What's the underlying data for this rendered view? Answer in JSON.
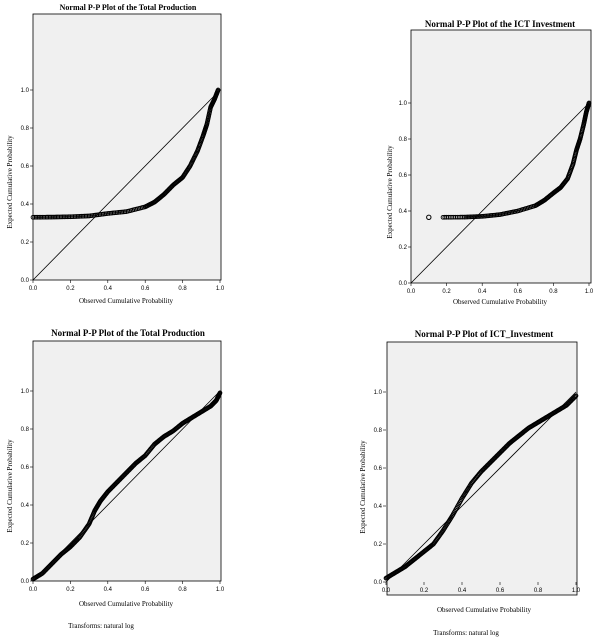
{
  "chart_data": [
    {
      "type": "scatter",
      "title": "Normal P-P Plot of the Total Production",
      "xlabel": "Observed Cumulative Probability",
      "ylabel": "Expected Cumulative Probability",
      "footnote": "",
      "xlim": [
        0,
        1
      ],
      "ylim": [
        0,
        1
      ],
      "xticks": [
        "0.0",
        "0.2",
        "0.4",
        "0.6",
        "0.8",
        "1.0"
      ],
      "yticks": [
        "0.0",
        "0.2",
        "0.4",
        "0.6",
        "0.8",
        "1.0"
      ],
      "reference_line": [
        [
          0,
          0
        ],
        [
          1,
          1
        ]
      ],
      "curve": [
        [
          0.0,
          0.33
        ],
        [
          0.1,
          0.331
        ],
        [
          0.2,
          0.333
        ],
        [
          0.3,
          0.337
        ],
        [
          0.4,
          0.35
        ],
        [
          0.5,
          0.36
        ],
        [
          0.6,
          0.385
        ],
        [
          0.65,
          0.41
        ],
        [
          0.7,
          0.45
        ],
        [
          0.75,
          0.5
        ],
        [
          0.8,
          0.54
        ],
        [
          0.84,
          0.6
        ],
        [
          0.88,
          0.68
        ],
        [
          0.91,
          0.76
        ],
        [
          0.93,
          0.82
        ],
        [
          0.95,
          0.91
        ],
        [
          0.97,
          0.95
        ],
        [
          0.99,
          1.0
        ]
      ]
    },
    {
      "type": "scatter",
      "title": "Normal P-P Plot of the ICT Investment",
      "xlabel": "Observed Cumulative Probability",
      "ylabel": "Expected Cumulative Probability",
      "footnote": "",
      "xlim": [
        0,
        1
      ],
      "ylim": [
        0,
        1
      ],
      "xticks": [
        "0.0",
        "0.2",
        "0.4",
        "0.6",
        "0.8",
        "1.0"
      ],
      "yticks": [
        "0.0",
        "0.2",
        "0.4",
        "0.6",
        "0.8",
        "1.0"
      ],
      "reference_line": [
        [
          0,
          0
        ],
        [
          1,
          1
        ]
      ],
      "outlier": [
        0.1,
        0.365
      ],
      "curve": [
        [
          0.18,
          0.365
        ],
        [
          0.3,
          0.366
        ],
        [
          0.4,
          0.37
        ],
        [
          0.5,
          0.38
        ],
        [
          0.6,
          0.4
        ],
        [
          0.7,
          0.43
        ],
        [
          0.75,
          0.46
        ],
        [
          0.8,
          0.5
        ],
        [
          0.84,
          0.53
        ],
        [
          0.88,
          0.58
        ],
        [
          0.91,
          0.66
        ],
        [
          0.93,
          0.74
        ],
        [
          0.95,
          0.8
        ],
        [
          0.97,
          0.88
        ],
        [
          0.985,
          0.95
        ],
        [
          1.0,
          1.0
        ]
      ]
    },
    {
      "type": "scatter",
      "title": "Normal P-P Plot of the Total Production",
      "xlabel": "Observed Cumulative Probability",
      "ylabel": "Expected Cumulative Probability",
      "footnote": "Transforms: natural log",
      "xlim": [
        0,
        1
      ],
      "ylim": [
        0,
        1
      ],
      "xticks": [
        "0.0",
        "0.2",
        "0.4",
        "0.6",
        "0.8",
        "1.0"
      ],
      "yticks": [
        "0.0",
        "0.2",
        "0.4",
        "0.6",
        "0.8",
        "1.0"
      ],
      "reference_line": [
        [
          0,
          0
        ],
        [
          1,
          1
        ]
      ],
      "curve": [
        [
          0.0,
          0.01
        ],
        [
          0.05,
          0.04
        ],
        [
          0.1,
          0.09
        ],
        [
          0.15,
          0.14
        ],
        [
          0.2,
          0.18
        ],
        [
          0.25,
          0.23
        ],
        [
          0.3,
          0.3
        ],
        [
          0.33,
          0.37
        ],
        [
          0.36,
          0.42
        ],
        [
          0.4,
          0.47
        ],
        [
          0.45,
          0.52
        ],
        [
          0.5,
          0.57
        ],
        [
          0.55,
          0.62
        ],
        [
          0.6,
          0.66
        ],
        [
          0.65,
          0.72
        ],
        [
          0.7,
          0.76
        ],
        [
          0.75,
          0.79
        ],
        [
          0.8,
          0.83
        ],
        [
          0.85,
          0.86
        ],
        [
          0.9,
          0.89
        ],
        [
          0.95,
          0.92
        ],
        [
          0.98,
          0.95
        ],
        [
          1.0,
          0.99
        ]
      ]
    },
    {
      "type": "scatter",
      "title": "Normal P-P Plot of ICT_Investment",
      "xlabel": "Observed Cumulative Probability",
      "ylabel": "Expected Cumulative Probability",
      "footnote": "Transforms: natural log",
      "xlim": [
        0,
        1
      ],
      "ylim": [
        0,
        1
      ],
      "xticks": [
        "0.0",
        "0.2",
        "0.4",
        "0.6",
        "0.8",
        "1.0"
      ],
      "yticks": [
        "0.0",
        "0.2",
        "0.4",
        "0.6",
        "0.8",
        "1.0"
      ],
      "reference_line": [
        [
          0,
          0
        ],
        [
          1,
          1
        ]
      ],
      "curve": [
        [
          0.0,
          0.02
        ],
        [
          0.05,
          0.05
        ],
        [
          0.1,
          0.08
        ],
        [
          0.15,
          0.12
        ],
        [
          0.2,
          0.16
        ],
        [
          0.25,
          0.2
        ],
        [
          0.3,
          0.27
        ],
        [
          0.35,
          0.35
        ],
        [
          0.4,
          0.44
        ],
        [
          0.45,
          0.52
        ],
        [
          0.5,
          0.58
        ],
        [
          0.55,
          0.63
        ],
        [
          0.6,
          0.68
        ],
        [
          0.65,
          0.73
        ],
        [
          0.7,
          0.77
        ],
        [
          0.75,
          0.81
        ],
        [
          0.8,
          0.84
        ],
        [
          0.85,
          0.87
        ],
        [
          0.9,
          0.9
        ],
        [
          0.95,
          0.93
        ],
        [
          1.0,
          0.98
        ]
      ]
    }
  ]
}
